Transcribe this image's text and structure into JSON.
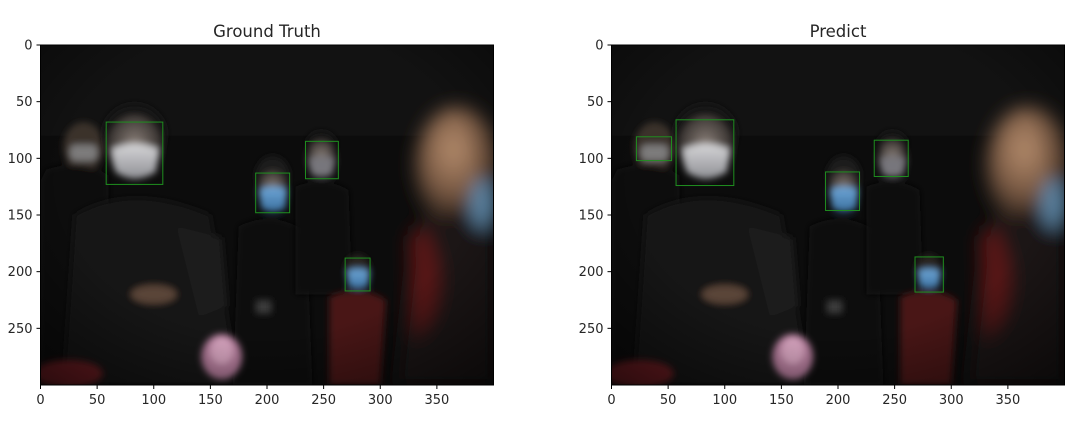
{
  "chart_data": [
    {
      "type": "image",
      "title": "Ground Truth",
      "xlim": [
        0,
        400
      ],
      "ylim": [
        300,
        0
      ],
      "xticks": [
        0,
        50,
        100,
        150,
        200,
        250,
        300,
        350
      ],
      "yticks": [
        0,
        50,
        100,
        150,
        200,
        250
      ],
      "boxes": [
        {
          "x0": 58,
          "y0": 68,
          "x1": 108,
          "y1": 123
        },
        {
          "x0": 190,
          "y0": 113,
          "x1": 220,
          "y1": 148
        },
        {
          "x0": 234,
          "y0": 85,
          "x1": 263,
          "y1": 118
        },
        {
          "x0": 269,
          "y0": 188,
          "x1": 291,
          "y1": 217
        }
      ],
      "box_color": "#1f8f1f"
    },
    {
      "type": "image",
      "title": "Predict",
      "xlim": [
        0,
        400
      ],
      "ylim": [
        300,
        0
      ],
      "xticks": [
        0,
        50,
        100,
        150,
        200,
        250,
        300,
        350
      ],
      "yticks": [
        0,
        50,
        100,
        150,
        200,
        250
      ],
      "boxes": [
        {
          "x0": 22,
          "y0": 81,
          "x1": 53,
          "y1": 102
        },
        {
          "x0": 57,
          "y0": 66,
          "x1": 108,
          "y1": 124
        },
        {
          "x0": 189,
          "y0": 112,
          "x1": 219,
          "y1": 146
        },
        {
          "x0": 232,
          "y0": 84,
          "x1": 262,
          "y1": 116
        },
        {
          "x0": 268,
          "y0": 187,
          "x1": 293,
          "y1": 218
        }
      ],
      "box_color": "#1f8f1f"
    }
  ]
}
